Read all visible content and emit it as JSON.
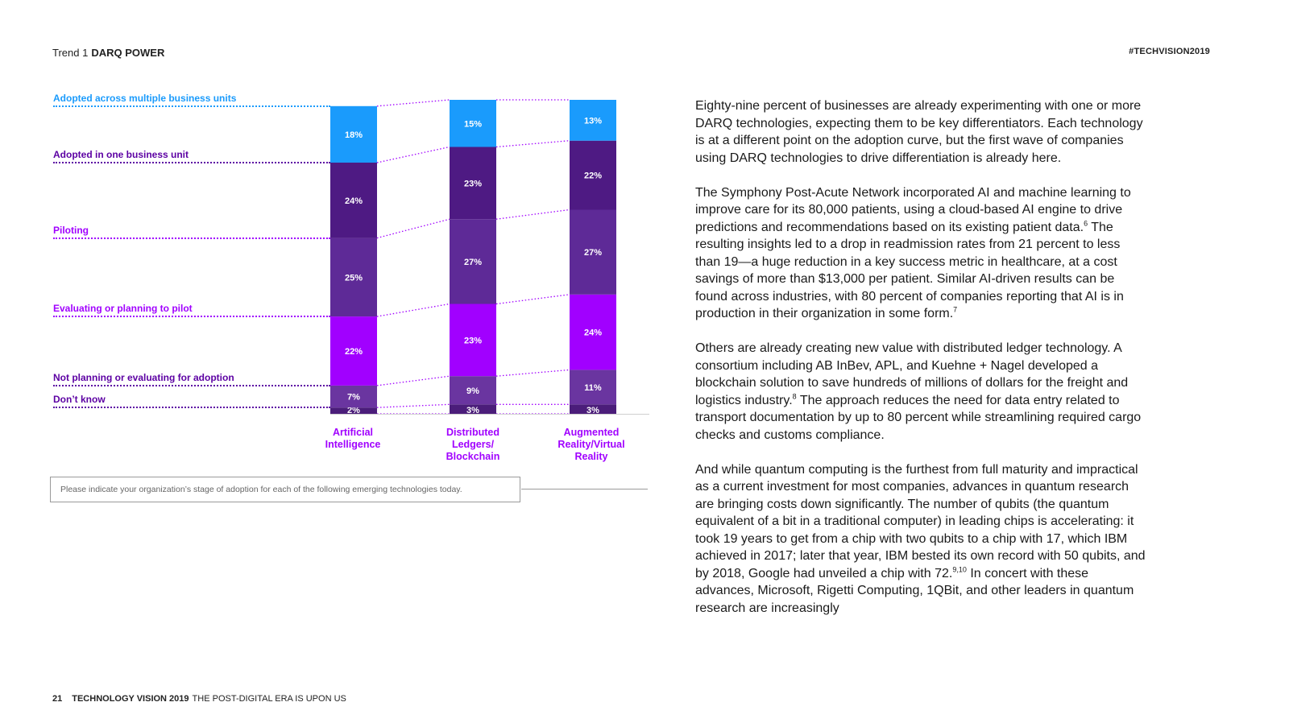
{
  "header": {
    "trend_prefix": "Trend 1",
    "trend_name": "DARQ POWER",
    "hashtag": "#TECHVISION2019"
  },
  "footer": {
    "page_number": "21",
    "brand": "TECHNOLOGY VISION 2019",
    "tagline": "THE POST-DIGITAL ERA IS UPON US"
  },
  "chart_data": {
    "type": "bar",
    "stacked": true,
    "orientation": "vertical",
    "categories": [
      "Artificial Intelligence",
      "Distributed Ledgers/ Blockchain",
      "Augmented Reality/Virtual Reality"
    ],
    "series": [
      {
        "name": "Don’t know",
        "values": [
          2,
          3,
          3
        ],
        "color": "#4b1d7a"
      },
      {
        "name": "Not planning or evaluating for adoption",
        "values": [
          7,
          9,
          11
        ],
        "color": "#6a35a0"
      },
      {
        "name": "Evaluating or planning to pilot",
        "values": [
          22,
          23,
          24
        ],
        "color": "#a100ff"
      },
      {
        "name": "Piloting",
        "values": [
          25,
          27,
          27
        ],
        "color": "#5e2a97"
      },
      {
        "name": "Adopted in one business unit",
        "values": [
          24,
          23,
          22
        ],
        "color": "#4e1a83"
      },
      {
        "name": "Adopted across multiple business units",
        "values": [
          18,
          15,
          13
        ],
        "color": "#1a9bfc"
      }
    ],
    "value_suffix": "%",
    "legend_colors": [
      "#5c00a3",
      "#5c00a3",
      "#a100ff",
      "#a100ff",
      "#5c00a3",
      "#1a9bfc"
    ]
  },
  "chart": {
    "category_labels": [
      [
        "Artificial",
        "Intelligence"
      ],
      [
        "Distributed",
        "Ledgers/",
        "Blockchain"
      ],
      [
        "Augmented",
        "Reality/Virtual",
        "Reality"
      ]
    ],
    "question": "Please indicate your organization’s stage of adoption for each of the following emerging technologies today."
  },
  "body": {
    "paragraphs": [
      "Eighty-nine percent of businesses are already experimenting with one or more DARQ technologies, expecting them to be key differentiators. Each technology is at a different point on the adoption curve, but the first wave of companies using DARQ technologies to drive differentiation is already here.",
      "The Symphony Post-Acute Network incorporated AI and machine learning to improve care for its 80,000 patients, using a cloud-based AI engine to drive predictions and recommendations based on its existing patient data.",
      "The resulting insights led to a drop in readmission rates from 21 percent to less than 19—a huge reduction in a key success metric in healthcare, at a cost savings of more than $13,000 per patient. Similar AI-driven results can be found across industries, with 80 percent of companies reporting that AI is in production in their organization in some form.",
      "Others are already creating new value with distributed ledger technology. A consortium including AB InBev, APL, and Kuehne + Nagel developed a blockchain solution to save hundreds of millions of dollars for the freight and logistics industry.",
      "The approach reduces the need for data entry related to transport documentation by up to 80 percent while streamlining required cargo checks and customs compliance.",
      "And while quantum computing is the furthest from full maturity and impractical as a current investment for most companies, advances in quantum research are bringing costs down significantly. The number of qubits (the quantum equivalent of a bit in a traditional computer) in leading chips is accelerating: it took 19 years to get from a chip with two qubits to a chip with 17, which IBM achieved in 2017; later that year, IBM bested its own record with 50 qubits, and by 2018, Google had unveiled a chip with 72.",
      "In concert with these advances, Microsoft, Rigetti Computing, 1QBit, and other leaders in quantum research are increasingly"
    ],
    "footnotes": [
      "6",
      "7",
      "8",
      "9,10"
    ]
  }
}
